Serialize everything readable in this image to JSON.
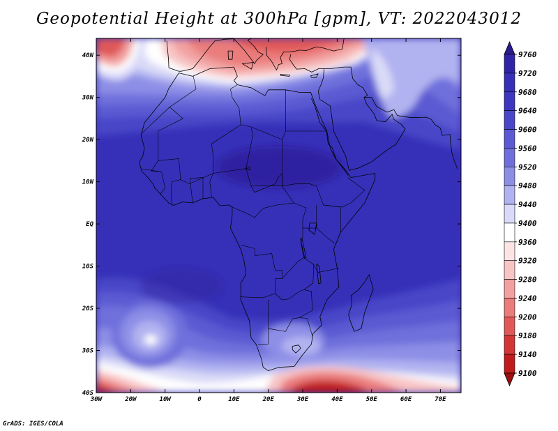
{
  "title": "Geopotential Height at 300hPa [gpm], VT: 2022043012",
  "credit": "GrADS: IGES/COLA",
  "map": {
    "lon_range": [
      -30,
      76
    ],
    "lat_range": [
      -40,
      44
    ],
    "lon_ticks": [
      {
        "value": -30,
        "label": "30W"
      },
      {
        "value": -20,
        "label": "20W"
      },
      {
        "value": -10,
        "label": "10W"
      },
      {
        "value": 0,
        "label": "0"
      },
      {
        "value": 10,
        "label": "10E"
      },
      {
        "value": 20,
        "label": "20E"
      },
      {
        "value": 30,
        "label": "30E"
      },
      {
        "value": 40,
        "label": "40E"
      },
      {
        "value": 50,
        "label": "50E"
      },
      {
        "value": 60,
        "label": "60E"
      },
      {
        "value": 70,
        "label": "70E"
      }
    ],
    "lat_ticks": [
      {
        "value": 40,
        "label": "40N"
      },
      {
        "value": 30,
        "label": "30N"
      },
      {
        "value": 20,
        "label": "20N"
      },
      {
        "value": 10,
        "label": "10N"
      },
      {
        "value": 0,
        "label": "EQ"
      },
      {
        "value": -10,
        "label": "10S"
      },
      {
        "value": -20,
        "label": "20S"
      },
      {
        "value": -30,
        "label": "30S"
      },
      {
        "value": -40,
        "label": "40S"
      }
    ],
    "africa_outline": [
      [
        -17,
        21
      ],
      [
        -16,
        24
      ],
      [
        -13,
        27
      ],
      [
        -10,
        30
      ],
      [
        -9,
        32
      ],
      [
        -6,
        35.8
      ],
      [
        -2,
        35
      ],
      [
        3,
        36.8
      ],
      [
        10,
        37.2
      ],
      [
        11,
        35
      ],
      [
        10,
        34
      ],
      [
        11,
        33
      ],
      [
        15,
        32.3
      ],
      [
        19,
        30.4
      ],
      [
        20,
        31.8
      ],
      [
        25,
        31.8
      ],
      [
        29,
        31.2
      ],
      [
        32.3,
        31.2
      ],
      [
        34,
        27.5
      ],
      [
        37,
        22
      ],
      [
        38,
        18
      ],
      [
        39.5,
        15.5
      ],
      [
        42.5,
        12.7
      ],
      [
        44,
        11
      ],
      [
        51,
        12
      ],
      [
        51,
        10.5
      ],
      [
        48,
        5
      ],
      [
        45,
        2
      ],
      [
        41,
        -2
      ],
      [
        39,
        -6
      ],
      [
        40,
        -10.5
      ],
      [
        40.5,
        -15
      ],
      [
        37,
        -18
      ],
      [
        35,
        -22
      ],
      [
        35.5,
        -24
      ],
      [
        33,
        -26
      ],
      [
        32.5,
        -28.5
      ],
      [
        30,
        -31
      ],
      [
        27.5,
        -33.8
      ],
      [
        23,
        -34
      ],
      [
        20,
        -34.8
      ],
      [
        18.5,
        -34
      ],
      [
        18,
        -32
      ],
      [
        16.5,
        -28.6
      ],
      [
        15,
        -27
      ],
      [
        14.5,
        -23
      ],
      [
        12,
        -18
      ],
      [
        12,
        -14
      ],
      [
        13.5,
        -12
      ],
      [
        13,
        -9
      ],
      [
        12,
        -6
      ],
      [
        9,
        -1
      ],
      [
        9.5,
        2
      ],
      [
        9.5,
        4
      ],
      [
        8.5,
        4.5
      ],
      [
        6,
        4.3
      ],
      [
        4,
        6.3
      ],
      [
        1,
        6
      ],
      [
        -2,
        5
      ],
      [
        -5,
        5.2
      ],
      [
        -7.5,
        4.4
      ],
      [
        -9,
        5
      ],
      [
        -11,
        6.8
      ],
      [
        -13,
        8.5
      ],
      [
        -13.5,
        9.5
      ],
      [
        -15,
        11
      ],
      [
        -16.8,
        12.5
      ],
      [
        -17.5,
        14.7
      ],
      [
        -16.5,
        16
      ],
      [
        -16,
        18
      ],
      [
        -16.5,
        19.5
      ],
      [
        -17,
        21
      ]
    ],
    "madagascar_outline": [
      [
        49.3,
        -12
      ],
      [
        50.5,
        -15.5
      ],
      [
        49.8,
        -17
      ],
      [
        48,
        -21
      ],
      [
        47,
        -24.8
      ],
      [
        45,
        -25.5
      ],
      [
        43.8,
        -23
      ],
      [
        43.3,
        -21.5
      ],
      [
        44.3,
        -19
      ],
      [
        44,
        -17
      ],
      [
        46,
        -15.8
      ],
      [
        47.8,
        -14
      ],
      [
        49.3,
        -12
      ]
    ],
    "arabia_outline": [
      [
        35,
        29.5
      ],
      [
        38,
        28
      ],
      [
        39,
        22
      ],
      [
        42.5,
        16
      ],
      [
        43.5,
        12.7
      ],
      [
        46,
        13.2
      ],
      [
        50,
        14.7
      ],
      [
        52,
        16
      ],
      [
        55,
        17.8
      ],
      [
        57,
        18.8
      ],
      [
        59.8,
        22.5
      ],
      [
        58.5,
        23.7
      ],
      [
        56.4,
        24.8
      ],
      [
        56,
        26
      ],
      [
        54,
        24.2
      ],
      [
        51.5,
        24.5
      ],
      [
        50.8,
        26
      ],
      [
        48.5,
        28.5
      ],
      [
        47.8,
        30
      ],
      [
        48.8,
        30.5
      ],
      [
        47.5,
        32.3
      ],
      [
        46,
        33
      ],
      [
        44.5,
        34.5
      ],
      [
        44,
        37.2
      ],
      [
        42,
        37.2
      ],
      [
        40,
        37
      ],
      [
        38,
        36.8
      ],
      [
        36.2,
        36.8
      ],
      [
        36,
        34.6
      ],
      [
        35.3,
        33
      ],
      [
        34.5,
        31.5
      ],
      [
        35,
        29.5
      ]
    ],
    "europe_outline": [
      [
        -9.5,
        43.4
      ],
      [
        -9,
        39
      ],
      [
        -8.9,
        37
      ],
      [
        -6,
        36.2
      ],
      [
        -5.3,
        36.2
      ],
      [
        -2,
        36.8
      ],
      [
        0,
        38.8
      ],
      [
        3,
        42
      ],
      [
        4.5,
        43.4
      ],
      [
        7.5,
        43.8
      ],
      [
        10,
        43.9
      ],
      [
        13,
        41.2
      ],
      [
        16,
        38
      ],
      [
        16.6,
        38.8
      ],
      [
        18.5,
        40.2
      ],
      [
        17,
        40.8
      ],
      [
        16,
        42
      ],
      [
        14,
        43.6
      ],
      [
        15.2,
        44
      ]
    ],
    "balkans_outline": [
      [
        19.4,
        42
      ],
      [
        19.5,
        40
      ],
      [
        21,
        38.5
      ],
      [
        22.4,
        36.5
      ],
      [
        23,
        37.8
      ],
      [
        24,
        38
      ],
      [
        23.5,
        39.5
      ],
      [
        24.5,
        40.8
      ],
      [
        26,
        40.8
      ],
      [
        28,
        41
      ],
      [
        29,
        41.2
      ],
      [
        31,
        41.1
      ],
      [
        34,
        42
      ],
      [
        36,
        41.7
      ],
      [
        39,
        41
      ],
      [
        41.5,
        41.5
      ],
      [
        42,
        44
      ]
    ],
    "turkey_south": [
      [
        26.5,
        40.2
      ],
      [
        26.2,
        39
      ],
      [
        27.2,
        37.8
      ],
      [
        28.2,
        36.7
      ],
      [
        30.6,
        36.8
      ],
      [
        32.6,
        36
      ],
      [
        34.6,
        36.8
      ],
      [
        36.2,
        36.8
      ]
    ],
    "sicily": [
      [
        12.4,
        38
      ],
      [
        15.6,
        38.3
      ],
      [
        15.1,
        36.7
      ],
      [
        12.4,
        38
      ]
    ],
    "sardinia": [
      [
        8.3,
        41
      ],
      [
        9.7,
        41
      ],
      [
        9.5,
        39
      ],
      [
        8.4,
        39
      ],
      [
        8.3,
        41
      ]
    ],
    "crete": [
      [
        23.5,
        35.5
      ],
      [
        26.3,
        35.3
      ],
      [
        26.1,
        35
      ],
      [
        23.6,
        35.2
      ],
      [
        23.5,
        35.5
      ]
    ],
    "cyprus": [
      [
        32.3,
        35.1
      ],
      [
        34.5,
        35.6
      ],
      [
        33.9,
        34.7
      ],
      [
        32.6,
        34.7
      ],
      [
        32.3,
        35.1
      ]
    ],
    "iran_coast": [
      [
        48,
        30
      ],
      [
        50,
        30
      ],
      [
        51.5,
        27.8
      ],
      [
        54.5,
        26.5
      ],
      [
        56.5,
        27.1
      ],
      [
        57.5,
        25.7
      ],
      [
        61.5,
        25.2
      ],
      [
        66,
        25.3
      ],
      [
        67.3,
        24.8
      ],
      [
        68.5,
        23.5
      ],
      [
        70,
        22.7
      ],
      [
        70.5,
        21
      ],
      [
        72.8,
        21.2
      ],
      [
        73,
        19
      ],
      [
        73.3,
        17
      ],
      [
        74,
        15
      ],
      [
        75,
        13
      ]
    ],
    "red_sea_west": [
      [
        32.5,
        29.8
      ],
      [
        33.5,
        28
      ],
      [
        35,
        24
      ],
      [
        36.9,
        22
      ],
      [
        37.4,
        19
      ],
      [
        38.6,
        18
      ],
      [
        39.7,
        15.3
      ],
      [
        41.5,
        13.4
      ],
      [
        43.2,
        11.5
      ]
    ],
    "borders": [
      [
        [
          -8.7,
          27.7
        ],
        [
          -1,
          32
        ],
        [
          -1.8,
          35
        ]
      ],
      [
        [
          -8.7,
          27.7
        ],
        [
          -17,
          21.3
        ]
      ],
      [
        [
          -8.7,
          27.7
        ],
        [
          -4.8,
          25
        ],
        [
          -12,
          22
        ],
        [
          -12,
          15
        ],
        [
          -6,
          15.5
        ],
        [
          -5.5,
          10.5
        ]
      ],
      [
        [
          -5.5,
          10.5
        ],
        [
          -3,
          9.5
        ],
        [
          4,
          12
        ],
        [
          4,
          16
        ],
        [
          3.5,
          19
        ],
        [
          12,
          23.5
        ],
        [
          11.5,
          27.5
        ],
        [
          9.5,
          30
        ],
        [
          9,
          32
        ],
        [
          11,
          33
        ]
      ],
      [
        [
          12,
          23.5
        ],
        [
          15,
          23
        ],
        [
          24,
          20
        ],
        [
          25,
          22
        ],
        [
          25,
          31.8
        ]
      ],
      [
        [
          25,
          22
        ],
        [
          36.9,
          22
        ]
      ],
      [
        [
          15,
          23
        ],
        [
          15.5,
          21
        ],
        [
          14,
          15
        ],
        [
          13.5,
          13.2
        ],
        [
          15,
          9
        ],
        [
          24,
          9
        ],
        [
          24,
          20
        ]
      ],
      [
        [
          4,
          12
        ],
        [
          14,
          13.2
        ]
      ],
      [
        [
          3.5,
          6.5
        ],
        [
          3,
          10
        ],
        [
          4,
          12
        ]
      ],
      [
        [
          1,
          6
        ],
        [
          1,
          11
        ]
      ],
      [
        [
          -2,
          5
        ],
        [
          -2.8,
          10.8
        ],
        [
          1,
          11
        ]
      ],
      [
        [
          -8,
          4.4
        ],
        [
          -8.3,
          7.5
        ],
        [
          -8,
          10
        ],
        [
          -5.5,
          10.5
        ]
      ],
      [
        [
          -11.5,
          7
        ],
        [
          -10,
          8.5
        ],
        [
          -11,
          12.3
        ],
        [
          -13.7,
          12.7
        ],
        [
          -16.8,
          13
        ]
      ],
      [
        [
          -12,
          15
        ],
        [
          -14,
          12.6
        ],
        [
          -11,
          12.3
        ]
      ],
      [
        [
          9.5,
          4
        ],
        [
          14.5,
          2.2
        ],
        [
          16,
          1.5
        ],
        [
          18.5,
          3.7
        ],
        [
          22.5,
          4.5
        ],
        [
          27.4,
          5
        ],
        [
          31,
          3.8
        ],
        [
          30,
          1
        ],
        [
          30,
          -1
        ]
      ],
      [
        [
          15,
          9
        ],
        [
          16,
          7.5
        ],
        [
          22,
          9.5
        ],
        [
          22.8,
          11
        ],
        [
          24,
          12
        ],
        [
          24,
          9
        ]
      ],
      [
        [
          27.4,
          5
        ],
        [
          24,
          9
        ]
      ],
      [
        [
          24,
          9
        ],
        [
          28,
          9.5
        ],
        [
          32,
          9.5
        ],
        [
          34,
          9
        ],
        [
          36,
          4.5
        ],
        [
          41.5,
          4
        ],
        [
          44,
          5
        ],
        [
          48,
          8
        ],
        [
          43,
          11
        ]
      ],
      [
        [
          36,
          4.5
        ],
        [
          41,
          4
        ],
        [
          41,
          -2
        ]
      ],
      [
        [
          34,
          4.5
        ],
        [
          34,
          0
        ],
        [
          34,
          -1
        ],
        [
          30,
          -1
        ],
        [
          30,
          -3
        ]
      ],
      [
        [
          34,
          -1
        ],
        [
          37.5,
          -3.5
        ],
        [
          39.3,
          -4.6
        ]
      ],
      [
        [
          30,
          -3
        ],
        [
          29.5,
          -4.5
        ],
        [
          30.3,
          -8
        ],
        [
          33,
          -9.5
        ],
        [
          34.5,
          -11.5
        ],
        [
          40.5,
          -10.5
        ]
      ],
      [
        [
          12,
          -5
        ],
        [
          16,
          -5.8
        ],
        [
          16.2,
          -7.5
        ],
        [
          21,
          -7
        ],
        [
          22,
          -11
        ],
        [
          24,
          -11
        ],
        [
          24,
          -13
        ],
        [
          22,
          -13
        ],
        [
          22,
          -16.5
        ],
        [
          18.5,
          -17.5
        ],
        [
          11.8,
          -17.3
        ]
      ],
      [
        [
          24,
          -13
        ],
        [
          28.5,
          -9
        ],
        [
          30.3,
          -8
        ]
      ],
      [
        [
          22,
          -16.5
        ],
        [
          24,
          -18
        ],
        [
          26,
          -17.8
        ],
        [
          29,
          -16
        ],
        [
          30.4,
          -15.6
        ],
        [
          33,
          -14
        ],
        [
          33.2,
          -9.5
        ]
      ],
      [
        [
          20,
          -18
        ],
        [
          20,
          -22
        ],
        [
          20,
          -24.8
        ],
        [
          25,
          -25.5
        ],
        [
          27,
          -22.5
        ],
        [
          29,
          -22.2
        ],
        [
          31.3,
          -22.4
        ],
        [
          32.9,
          -26.8
        ]
      ],
      [
        [
          29,
          -22.2
        ],
        [
          32.8,
          -20.5
        ],
        [
          32.5,
          -16
        ],
        [
          30.4,
          -15.6
        ]
      ],
      [
        [
          20,
          -24.8
        ],
        [
          20,
          -28.5
        ],
        [
          17,
          -28.6
        ]
      ]
    ],
    "lakes": [
      [
        [
          32,
          0.2
        ],
        [
          34,
          0.2
        ],
        [
          33.5,
          -2.5
        ],
        [
          31.8,
          -1.5
        ],
        [
          32,
          0.2
        ]
      ],
      [
        [
          29.3,
          -3.5
        ],
        [
          29.8,
          -3.5
        ],
        [
          31,
          -8
        ],
        [
          30.6,
          -8.2
        ],
        [
          29.3,
          -3.5
        ]
      ],
      [
        [
          34,
          -9.5
        ],
        [
          34.8,
          -10
        ],
        [
          35.3,
          -14
        ],
        [
          34.6,
          -14.2
        ],
        [
          34,
          -9.5
        ]
      ],
      [
        [
          13.5,
          13.5
        ],
        [
          14.7,
          13.5
        ],
        [
          14.6,
          12.8
        ],
        [
          13.6,
          12.9
        ],
        [
          13.5,
          13.5
        ]
      ]
    ],
    "lesotho": [
      [
        27,
        -29
      ],
      [
        28.8,
        -28.7
      ],
      [
        29.4,
        -29.5
      ],
      [
        28,
        -30.6
      ],
      [
        27,
        -29.8
      ],
      [
        27,
        -29
      ]
    ]
  },
  "colorbar": {
    "labels": [
      "9760",
      "9720",
      "9680",
      "9640",
      "9600",
      "9560",
      "9520",
      "9480",
      "9440",
      "9400",
      "9360",
      "9320",
      "9280",
      "9240",
      "9200",
      "9180",
      "9140",
      "9100"
    ],
    "colors": [
      "#2a1a8e",
      "#3024a6",
      "#3630b8",
      "#3d37c0",
      "#4a46c8",
      "#5b5ad2",
      "#6f6fdc",
      "#8d8ee6",
      "#b1b2f0",
      "#dadaf8",
      "#ffffff",
      "#fce4e4",
      "#f8c4c4",
      "#f2a0a0",
      "#ea7c7c",
      "#e05858",
      "#d43636",
      "#c01c1c",
      "#9e1010"
    ]
  }
}
